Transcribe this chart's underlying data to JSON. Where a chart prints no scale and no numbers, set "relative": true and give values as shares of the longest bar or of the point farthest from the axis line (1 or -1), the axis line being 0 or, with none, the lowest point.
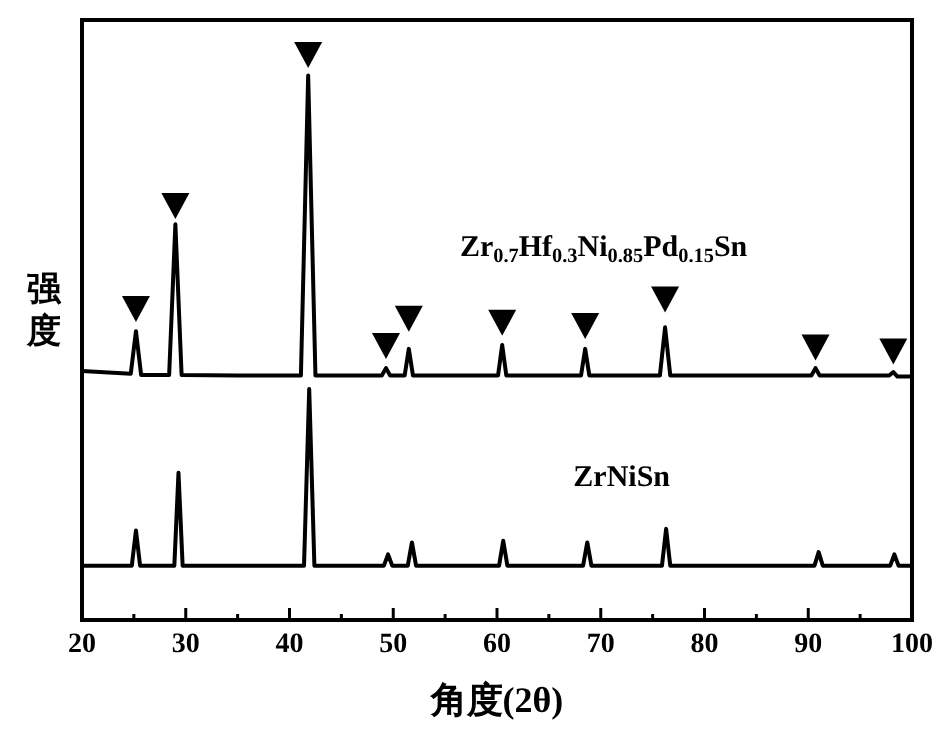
{
  "chart_data": {
    "type": "line",
    "relative": true,
    "xlabel": "角度(2θ)",
    "ylabel": "强度",
    "xlim": [
      20,
      100
    ],
    "xticks": [
      20,
      {
        "value": 25,
        "label": null
      },
      30,
      {
        "value": 35,
        "label": null
      },
      40,
      {
        "value": 45,
        "label": null
      },
      50,
      {
        "value": 55,
        "label": null
      },
      60,
      {
        "value": 65,
        "label": null
      },
      70,
      {
        "value": 75,
        "label": null
      },
      80,
      {
        "value": 85,
        "label": null
      },
      90,
      {
        "value": 95,
        "label": null
      },
      100
    ],
    "grid": false,
    "line_style": "solid",
    "marker": "none",
    "series": [
      {
        "name": "Zr$_{0.7}$Hf$_{0.3}$Ni$_{0.85}$Pd$_{0.15}$Sn",
        "color": "#000000",
        "x": [
          20,
          24.7,
          25.2,
          25.7,
          28.4,
          29,
          29.6,
          35,
          41.1,
          41.8,
          42.5,
          48.9,
          49.3,
          49.7,
          51.1,
          51.5,
          51.9,
          56,
          60.1,
          60.5,
          60.9,
          68.1,
          68.5,
          68.9,
          75.7,
          76.2,
          76.7,
          82,
          90.3,
          90.7,
          91.1,
          97.8,
          98.2,
          98.6,
          100
        ],
        "values": [
          0.44,
          0.435,
          0.51,
          0.433,
          0.433,
          0.699,
          0.433,
          0.432,
          0.432,
          0.962,
          0.432,
          0.432,
          0.445,
          0.432,
          0.432,
          0.479,
          0.432,
          0.432,
          0.432,
          0.486,
          0.432,
          0.432,
          0.479,
          0.432,
          0.432,
          0.517,
          0.432,
          0.432,
          0.432,
          0.445,
          0.432,
          0.432,
          0.438,
          0.43,
          0.43
        ]
      },
      {
        "name": "ZrNiSn",
        "color": "#000000",
        "x": [
          20,
          24.8,
          25.2,
          25.6,
          28.9,
          29.3,
          29.7,
          35,
          41.4,
          41.9,
          42.4,
          49.1,
          49.5,
          49.9,
          51.4,
          51.8,
          52.2,
          56,
          60.2,
          60.6,
          61,
          68.3,
          68.7,
          69.1,
          75.9,
          76.3,
          76.7,
          82,
          90.6,
          91,
          91.4,
          97.9,
          98.3,
          98.7,
          100
        ],
        "values": [
          0.096,
          0.096,
          0.158,
          0.096,
          0.096,
          0.26,
          0.096,
          0.096,
          0.096,
          0.408,
          0.096,
          0.096,
          0.116,
          0.096,
          0.096,
          0.137,
          0.096,
          0.096,
          0.096,
          0.14,
          0.096,
          0.096,
          0.137,
          0.096,
          0.096,
          0.161,
          0.096,
          0.096,
          0.096,
          0.12,
          0.096,
          0.096,
          0.116,
          0.096,
          0.096
        ]
      },
      {
        "type": "scatter",
        "marker": "triangle",
        "color": "#000000",
        "x": [
          25.2,
          29,
          41.8,
          49.3,
          51.5,
          60.5,
          68.5,
          76.2,
          90.7,
          98.2
        ],
        "values": [
          0.551,
          0.733,
          1,
          0.486,
          0.534,
          0.527,
          0.521,
          0.568,
          0.483,
          0.476
        ]
      }
    ]
  }
}
